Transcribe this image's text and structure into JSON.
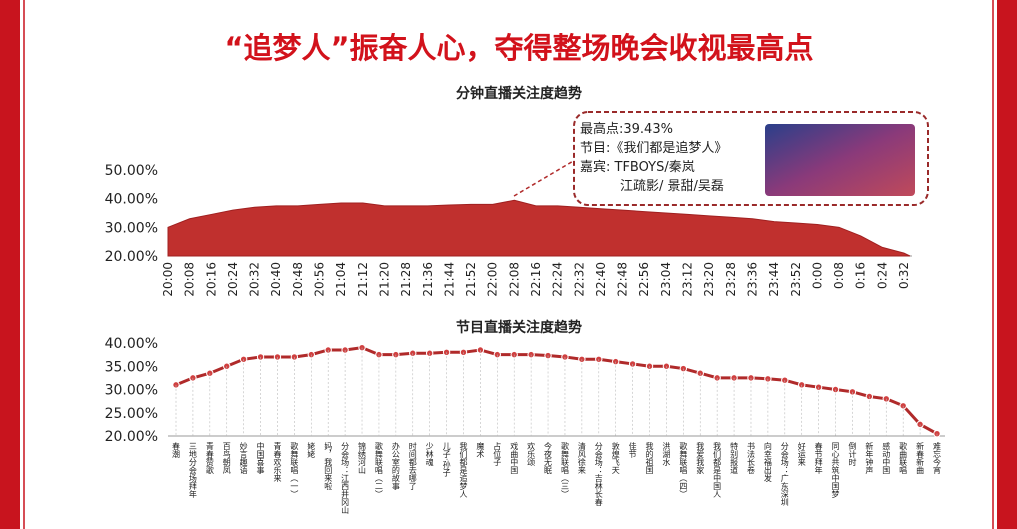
{
  "header": {
    "title": "“追梦人”振奋人心，夺得整场晚会收视最高点"
  },
  "chart_data": [
    {
      "type": "area",
      "title": "分钟直播关注度趋势",
      "color": "#c0302e",
      "categories": [
        "20:00",
        "20:08",
        "20:16",
        "20:24",
        "20:32",
        "20:40",
        "20:48",
        "20:56",
        "21:04",
        "21:12",
        "21:20",
        "21:28",
        "21:36",
        "21:44",
        "21:52",
        "22:00",
        "22:08",
        "22:16",
        "22:24",
        "22:32",
        "22:40",
        "22:48",
        "22:56",
        "23:04",
        "23:12",
        "23:20",
        "23:28",
        "23:36",
        "23:44",
        "23:52",
        "0:00",
        "0:08",
        "0:16",
        "0:24",
        "0:32"
      ],
      "values": [
        30,
        33,
        34.5,
        36,
        37,
        37.5,
        37.5,
        38,
        38.5,
        38.5,
        37.5,
        37.5,
        37.5,
        37.8,
        38,
        38,
        39.43,
        37.5,
        37.5,
        37,
        36.5,
        36,
        35.5,
        35,
        34.5,
        34,
        33.5,
        33,
        32,
        31.5,
        31,
        30,
        27,
        23,
        21
      ],
      "ylim": [
        20,
        50
      ],
      "yticks": [
        {
          "value": 20,
          "label": "20.00%"
        },
        {
          "value": 30,
          "label": "30.00%"
        },
        {
          "value": 40,
          "label": "40.00%"
        },
        {
          "value": 50,
          "label": "50.00%"
        }
      ],
      "annotation": [
        "最高点:39.43%",
        "节目:《我们都是追梦人》",
        "嘉宾: TFBOYS/秦岚",
        "江疏影/ 景甜/吴磊"
      ]
    },
    {
      "type": "line",
      "title": "节目直播关注度趋势",
      "color": "#b02a2a",
      "categories": [
        "春潮",
        "三地分会场拜年",
        "青春赞歌",
        "百鸟朝凤",
        "妙言趣语",
        "中国喜事",
        "青春欢乐来",
        "歌舞联唱（一）",
        "姥姥",
        "妈，我回来啦",
        "分会场：江西井冈山",
        "锦绣河山",
        "歌舞联唱（二）",
        "办公室的故事",
        "时间都去哪了",
        "少林魂",
        "儿子·孙子",
        "我们都是追梦人",
        "魔术",
        "占位子",
        "戏曲中国",
        "欢乐颂",
        "今夜无眠",
        "歌舞联唱（三）",
        "清风徐来",
        "分会场：吉林长春",
        "敦煌飞天",
        "佳节",
        "我的祖国",
        "洪湖水",
        "歌舞联唱（四）",
        "我爱我家",
        "我们都是中国人",
        "特别报道",
        "书法长卷",
        "向幸福出发",
        "分会场：广东深圳",
        "好运来",
        "春节拜年",
        "同心共筑中国梦",
        "倒计时",
        "新年钟声",
        "感动中国",
        "歌曲联唱",
        "新春新曲",
        "难忘今宵"
      ],
      "values": [
        31,
        32.5,
        33.5,
        35,
        36.5,
        37,
        37,
        37,
        37.5,
        38.5,
        38.5,
        39,
        37.5,
        37.5,
        37.8,
        37.8,
        38,
        38,
        38.5,
        37.5,
        37.5,
        37.5,
        37.3,
        37,
        36.5,
        36.5,
        36,
        35.5,
        35,
        35,
        34.5,
        33.5,
        32.5,
        32.5,
        32.5,
        32.3,
        32,
        31,
        30.5,
        30,
        29.5,
        28.5,
        28,
        26.5,
        22.5,
        20.5
      ],
      "ylim": [
        20,
        40
      ],
      "yticks": [
        {
          "value": 20,
          "label": "20.00%"
        },
        {
          "value": 25,
          "label": "25.00%"
        },
        {
          "value": 30,
          "label": "30.00%"
        },
        {
          "value": 35,
          "label": "35.00%"
        },
        {
          "value": 40,
          "label": "40.00%"
        }
      ]
    }
  ]
}
